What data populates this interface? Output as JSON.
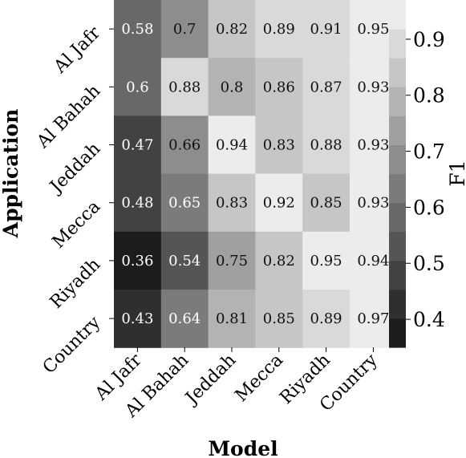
{
  "chart_data": {
    "type": "heatmap",
    "xlabel": "Model",
    "ylabel": "Application",
    "x_categories": [
      "Al Jafr",
      "Al Bahah",
      "Jeddah",
      "Mecca",
      "Riyadh",
      "Country"
    ],
    "y_categories": [
      "Al Jafr",
      "Al Bahah",
      "Jeddah",
      "Mecca",
      "Riyadh",
      "Country"
    ],
    "values": [
      [
        "0.58",
        "0.7",
        "0.82",
        "0.89",
        "0.91",
        "0.95"
      ],
      [
        "0.6",
        "0.88",
        "0.8",
        "0.86",
        "0.87",
        "0.93"
      ],
      [
        "0.47",
        "0.66",
        "0.94",
        "0.83",
        "0.88",
        "0.93"
      ],
      [
        "0.48",
        "0.65",
        "0.83",
        "0.92",
        "0.85",
        "0.93"
      ],
      [
        "0.36",
        "0.54",
        "0.75",
        "0.82",
        "0.95",
        "0.94"
      ],
      [
        "0.43",
        "0.64",
        "0.81",
        "0.85",
        "0.89",
        "0.97"
      ]
    ],
    "colorbar": {
      "label": "F1",
      "range": [
        0.35,
        0.97
      ],
      "ticks": [
        "0.4",
        "0.5",
        "0.6",
        "0.7",
        "0.8",
        "0.9"
      ],
      "levels": 12,
      "colormap": "discrete grayscale (dark = low, light = high)"
    },
    "grid": false
  }
}
